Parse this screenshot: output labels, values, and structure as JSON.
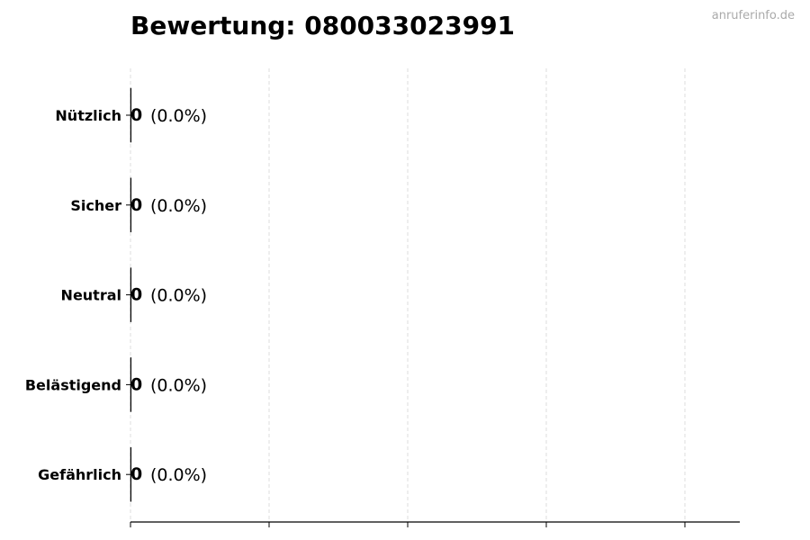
{
  "chart_data": {
    "type": "bar",
    "orientation": "horizontal",
    "title": "Bewertung: 080033023991",
    "watermark": "anruferinfo.de",
    "categories": [
      "Nützlich",
      "Sicher",
      "Neutral",
      "Belästigend",
      "Gefährlich"
    ],
    "values": [
      0,
      0,
      0,
      0,
      0
    ],
    "data_labels": [
      {
        "count": "0",
        "percent": "(0.0%)"
      },
      {
        "count": "0",
        "percent": "(0.0%)"
      },
      {
        "count": "0",
        "percent": "(0.0%)"
      },
      {
        "count": "0",
        "percent": "(0.0%)"
      },
      {
        "count": "0",
        "percent": "(0.0%)"
      }
    ],
    "xlabel": "",
    "ylabel": "",
    "x_tick_labels_shown": false,
    "grid": "x, dashed",
    "colors": {
      "grid": "#dddddd",
      "axis": "#000000",
      "bar_edge": "#000000",
      "watermark": "#aaaaaa"
    }
  }
}
